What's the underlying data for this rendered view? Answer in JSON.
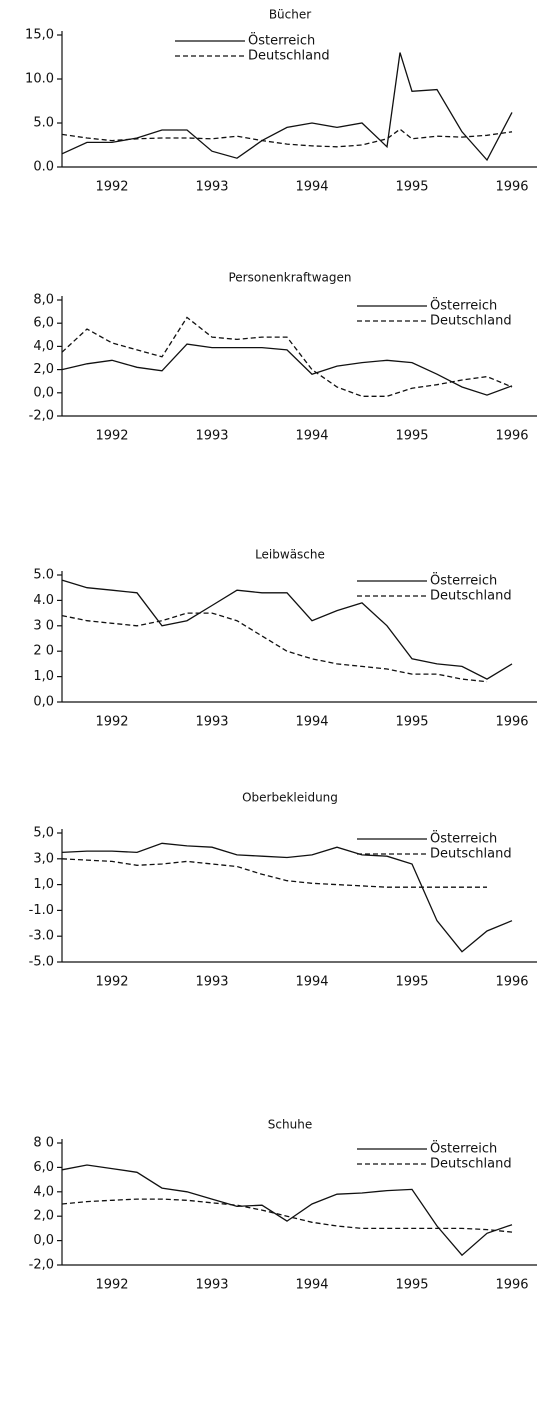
{
  "chart_data": [
    {
      "type": "line",
      "title": "Bücher",
      "legend": "upper center",
      "x": [
        1992,
        1992.25,
        1992.5,
        1992.75,
        1993,
        1993.25,
        1993.5,
        1993.75,
        1994,
        1994.25,
        1994.5,
        1994.75,
        1995,
        1995.25,
        1995.38,
        1995.5,
        1995.75,
        1996,
        1996.25,
        1996.5
      ],
      "xlim": [
        1992,
        1996.75
      ],
      "xticks": [
        {
          "value": 1992.5,
          "label": "1992"
        },
        {
          "value": 1993.5,
          "label": "1993"
        },
        {
          "value": 1994.5,
          "label": "1994"
        },
        {
          "value": 1995.5,
          "label": "1995"
        },
        {
          "value": 1996.5,
          "label": "1996"
        }
      ],
      "ylim": [
        0,
        15
      ],
      "yticks": [
        {
          "value": 15,
          "label": "15,0"
        },
        {
          "value": 10,
          "label": "10.0"
        },
        {
          "value": 5,
          "label": "5.0"
        },
        {
          "value": 0,
          "label": "0.0"
        }
      ],
      "series": [
        {
          "name": "Österreich",
          "color": "#111111",
          "line_style": "solid",
          "values": [
            1.5,
            2.8,
            2.8,
            3.3,
            4.2,
            4.2,
            1.8,
            1.0,
            3.0,
            4.5,
            5.0,
            4.5,
            5.0,
            2.3,
            13.0,
            8.6,
            8.8,
            4.0,
            0.8,
            6.2
          ]
        },
        {
          "name": "Deutschland",
          "color": "#111111",
          "line_style": "dashed",
          "values": [
            3.7,
            3.3,
            3.0,
            3.2,
            3.3,
            3.3,
            3.2,
            3.5,
            3.0,
            2.6,
            2.4,
            2.3,
            2.5,
            3.2,
            4.3,
            3.2,
            3.5,
            3.4,
            3.6,
            4.0
          ]
        }
      ]
    },
    {
      "type": "line",
      "title": "Personenkraftwagen",
      "legend": "upper right",
      "x": [
        1992,
        1992.25,
        1992.5,
        1992.75,
        1993,
        1993.25,
        1993.5,
        1993.75,
        1994,
        1994.25,
        1994.5,
        1994.75,
        1995,
        1995.25,
        1995.5,
        1995.75,
        1996,
        1996.25,
        1996.5
      ],
      "xlim": [
        1992,
        1996.75
      ],
      "xticks": [
        {
          "value": 1992.5,
          "label": "1992"
        },
        {
          "value": 1993.5,
          "label": "1993"
        },
        {
          "value": 1994.5,
          "label": "1994"
        },
        {
          "value": 1995.5,
          "label": "1995"
        },
        {
          "value": 1996.5,
          "label": "1996"
        }
      ],
      "ylim": [
        -2,
        8
      ],
      "yticks": [
        {
          "value": 8,
          "label": "8,0"
        },
        {
          "value": 6,
          "label": "6,0"
        },
        {
          "value": 4,
          "label": "4,0"
        },
        {
          "value": 2,
          "label": "2,0"
        },
        {
          "value": 0,
          "label": "0,0"
        },
        {
          "value": -2,
          "label": "-2,0"
        }
      ],
      "series": [
        {
          "name": "Österreich",
          "color": "#111111",
          "line_style": "solid",
          "values": [
            2.0,
            2.5,
            2.8,
            2.2,
            1.9,
            4.2,
            3.9,
            3.9,
            3.9,
            3.7,
            1.6,
            2.3,
            2.6,
            2.8,
            2.6,
            1.6,
            0.5,
            -0.2,
            0.6
          ]
        },
        {
          "name": "Deutschland",
          "color": "#111111",
          "line_style": "dashed",
          "values": [
            3.5,
            5.5,
            4.3,
            3.7,
            3.1,
            6.5,
            4.8,
            4.6,
            4.8,
            4.8,
            2.0,
            0.5,
            -0.3,
            -0.3,
            0.4,
            0.7,
            1.1,
            1.4,
            0.5
          ]
        }
      ]
    },
    {
      "type": "line",
      "title": "Leibwäsche",
      "legend": "upper right",
      "x": [
        1992,
        1992.25,
        1992.5,
        1992.75,
        1993,
        1993.25,
        1993.5,
        1993.75,
        1994,
        1994.25,
        1994.5,
        1994.75,
        1995,
        1995.25,
        1995.5,
        1995.75,
        1996,
        1996.25,
        1996.5
      ],
      "xlim": [
        1992,
        1996.75
      ],
      "xticks": [
        {
          "value": 1992.5,
          "label": "1992"
        },
        {
          "value": 1993.5,
          "label": "1993"
        },
        {
          "value": 1994.5,
          "label": "1994"
        },
        {
          "value": 1995.5,
          "label": "1995"
        },
        {
          "value": 1996.5,
          "label": "1996"
        }
      ],
      "ylim": [
        0,
        5
      ],
      "yticks": [
        {
          "value": 5,
          "label": "5.0"
        },
        {
          "value": 4,
          "label": "4.0"
        },
        {
          "value": 3,
          "label": "3 0"
        },
        {
          "value": 2,
          "label": "2 0"
        },
        {
          "value": 1,
          "label": "1,0"
        },
        {
          "value": 0,
          "label": "0,0"
        }
      ],
      "series": [
        {
          "name": "Österreich",
          "color": "#111111",
          "line_style": "solid",
          "values": [
            4.8,
            4.5,
            4.4,
            4.3,
            3.0,
            3.2,
            3.8,
            4.4,
            4.3,
            4.3,
            3.2,
            3.6,
            3.9,
            3.0,
            1.7,
            1.5,
            1.4,
            0.9,
            1.5
          ]
        },
        {
          "name": "Deutschland",
          "color": "#111111",
          "line_style": "dashed",
          "values": [
            3.4,
            3.2,
            3.1,
            3.0,
            3.2,
            3.5,
            3.5,
            3.2,
            2.6,
            2.0,
            1.7,
            1.5,
            1.4,
            1.3,
            1.1,
            1.1,
            0.9,
            0.8,
            null
          ]
        }
      ]
    },
    {
      "type": "line",
      "title": "Oberbekleidung",
      "legend": "upper right",
      "x": [
        1992,
        1992.25,
        1992.5,
        1992.75,
        1993,
        1993.25,
        1993.5,
        1993.75,
        1994,
        1994.25,
        1994.5,
        1994.75,
        1995,
        1995.25,
        1995.5,
        1995.75,
        1996,
        1996.25,
        1996.5
      ],
      "xlim": [
        1992,
        1996.75
      ],
      "xticks": [
        {
          "value": 1992.5,
          "label": "1992"
        },
        {
          "value": 1993.5,
          "label": "1993"
        },
        {
          "value": 1994.5,
          "label": "1994"
        },
        {
          "value": 1995.5,
          "label": "1995"
        },
        {
          "value": 1996.5,
          "label": "1996"
        }
      ],
      "ylim": [
        -5,
        5
      ],
      "yticks": [
        {
          "value": 5,
          "label": "5,0"
        },
        {
          "value": 3,
          "label": "3,0"
        },
        {
          "value": 1,
          "label": "1,0"
        },
        {
          "value": -1,
          "label": "-1.0"
        },
        {
          "value": -3,
          "label": "-3.0"
        },
        {
          "value": -5,
          "label": "-5.0"
        }
      ],
      "series": [
        {
          "name": "Österreich",
          "color": "#111111",
          "line_style": "solid",
          "values": [
            3.5,
            3.6,
            3.6,
            3.5,
            4.2,
            4.0,
            3.9,
            3.3,
            3.2,
            3.1,
            3.3,
            3.9,
            3.3,
            3.2,
            2.6,
            -1.8,
            -4.2,
            -2.6,
            -1.8
          ]
        },
        {
          "name": "Deutschland",
          "color": "#111111",
          "line_style": "dashed",
          "values": [
            3.0,
            2.9,
            2.8,
            2.5,
            2.6,
            2.8,
            2.6,
            2.4,
            1.8,
            1.3,
            1.1,
            1.0,
            0.9,
            0.8,
            0.8,
            0.8,
            0.8,
            0.8,
            null
          ]
        }
      ]
    },
    {
      "type": "line",
      "title": "Schuhe",
      "legend": "upper right",
      "x": [
        1992,
        1992.25,
        1992.5,
        1992.75,
        1993,
        1993.25,
        1993.5,
        1993.75,
        1994,
        1994.25,
        1994.5,
        1994.75,
        1995,
        1995.25,
        1995.5,
        1995.75,
        1996,
        1996.25,
        1996.5
      ],
      "xlim": [
        1992,
        1996.75
      ],
      "xticks": [
        {
          "value": 1992.5,
          "label": "1992"
        },
        {
          "value": 1993.5,
          "label": "1993"
        },
        {
          "value": 1994.5,
          "label": "1994"
        },
        {
          "value": 1995.5,
          "label": "1995"
        },
        {
          "value": 1996.5,
          "label": "1996"
        }
      ],
      "ylim": [
        -2,
        8
      ],
      "yticks": [
        {
          "value": 8,
          "label": "8 0"
        },
        {
          "value": 6,
          "label": "6,0"
        },
        {
          "value": 4,
          "label": "4,0"
        },
        {
          "value": 2,
          "label": "2,0"
        },
        {
          "value": 0,
          "label": "0,0"
        },
        {
          "value": -2,
          "label": "-2,0"
        }
      ],
      "series": [
        {
          "name": "Österreich",
          "color": "#111111",
          "line_style": "solid",
          "values": [
            5.8,
            6.2,
            5.9,
            5.6,
            4.3,
            4.0,
            3.4,
            2.8,
            2.9,
            1.6,
            3.0,
            3.8,
            3.9,
            4.1,
            4.2,
            1.2,
            -1.2,
            0.6,
            1.3
          ]
        },
        {
          "name": "Deutschland",
          "color": "#111111",
          "line_style": "dashed",
          "values": [
            3.0,
            3.2,
            3.3,
            3.4,
            3.4,
            3.3,
            3.1,
            2.9,
            2.5,
            2.0,
            1.5,
            1.2,
            1.0,
            1.0,
            1.0,
            1.0,
            1.0,
            0.9,
            0.7
          ]
        }
      ]
    }
  ]
}
